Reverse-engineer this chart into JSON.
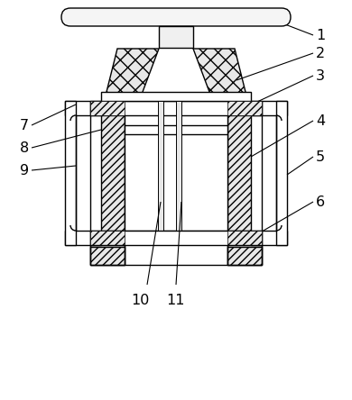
{
  "bg_color": "#ffffff",
  "lc": "#000000",
  "lw": 1.0,
  "hatch_diag": "////",
  "hatch_cross": "xxxx",
  "labels": [
    "1",
    "2",
    "3",
    "4",
    "5",
    "6",
    "7",
    "8",
    "9",
    "10",
    "11"
  ]
}
